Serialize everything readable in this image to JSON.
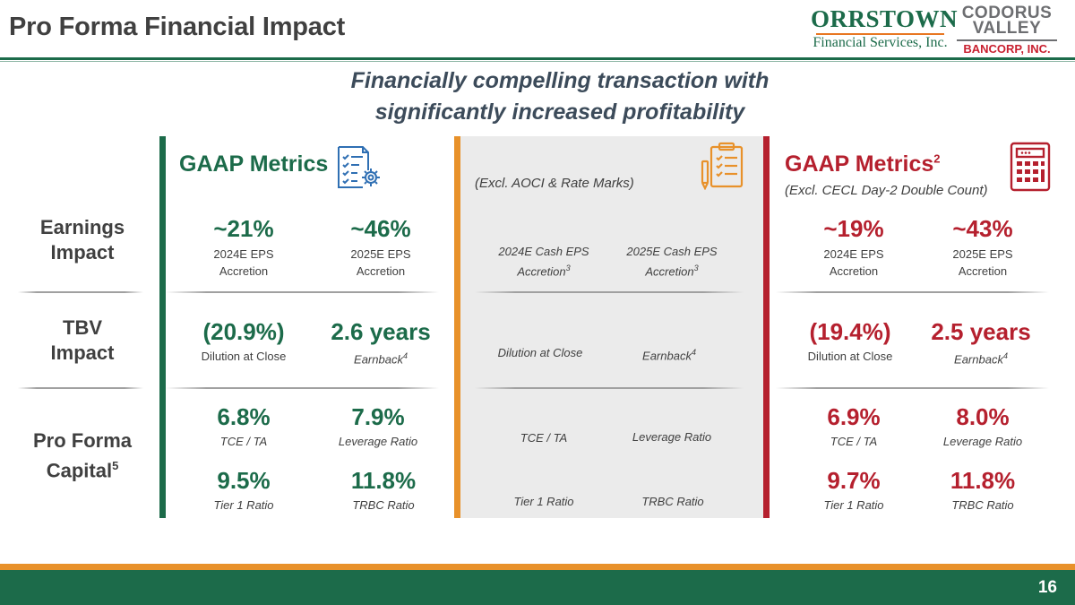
{
  "header": {
    "title": "Pro Forma Financial Impact",
    "logo_left": {
      "name": "ORRSTOWN",
      "subtitle": "Financial Services, Inc."
    },
    "logo_right": {
      "line1": "CODORUS",
      "line2": "VALLEY",
      "line3": "BANCORP, INC."
    }
  },
  "headline": {
    "line1": "Financially compelling transaction with",
    "line2": "significantly increased profitability"
  },
  "rows": {
    "earnings": {
      "line1": "Earnings",
      "line2": "Impact"
    },
    "tbv": {
      "line1": "TBV",
      "line2": "Impact"
    },
    "capital": {
      "line1": "Pro Forma",
      "line2": "Capital",
      "sup": "5"
    }
  },
  "gaap": {
    "title": "GAAP Metrics",
    "eps_2024": {
      "value": "~21%",
      "label1": "2024E EPS",
      "label2": "Accretion"
    },
    "eps_2025": {
      "value": "~46%",
      "label1": "2025E EPS",
      "label2": "Accretion"
    },
    "dilution": {
      "value": "(20.9%)",
      "label": "Dilution at Close"
    },
    "earnback": {
      "value": "2.6 years",
      "label": "Earnback",
      "sup": "4"
    },
    "tce": {
      "value": "6.8%",
      "label": "TCE / TA"
    },
    "leverage": {
      "value": "7.9%",
      "label": "Leverage Ratio"
    },
    "tier1": {
      "value": "9.5%",
      "label": "Tier 1 Ratio"
    },
    "trbc": {
      "value": "11.8%",
      "label": "TRBC Ratio"
    }
  },
  "middle": {
    "subtitle": "(Excl. AOCI & Rate Marks)",
    "eps_2024": {
      "label1": "2024E Cash EPS",
      "label2": "Accretion",
      "sup": "3"
    },
    "eps_2025": {
      "label1": "2025E Cash EPS",
      "label2": "Accretion",
      "sup": "3"
    },
    "dilution": {
      "label": "Dilution at Close"
    },
    "earnback": {
      "label": "Earnback",
      "sup": "4"
    },
    "tce": {
      "label": "TCE / TA"
    },
    "leverage": {
      "label": "Leverage Ratio"
    },
    "tier1": {
      "label": "Tier 1 Ratio"
    },
    "trbc": {
      "label": "TRBC Ratio"
    }
  },
  "gaap2": {
    "title": "GAAP Metrics",
    "title_sup": "2",
    "subtitle": "(Excl. CECL Day-2 Double Count)",
    "eps_2024": {
      "value": "~19%",
      "label1": "2024E EPS",
      "label2": "Accretion"
    },
    "eps_2025": {
      "value": "~43%",
      "label1": "2025E EPS",
      "label2": "Accretion"
    },
    "dilution": {
      "value": "(19.4%)",
      "label": "Dilution at Close"
    },
    "earnback": {
      "value": "2.5 years",
      "label": "Earnback",
      "sup": "4"
    },
    "tce": {
      "value": "6.9%",
      "label": "TCE / TA"
    },
    "leverage": {
      "value": "8.0%",
      "label": "Leverage Ratio"
    },
    "tier1": {
      "value": "9.7%",
      "label": "Tier 1 Ratio"
    },
    "trbc": {
      "value": "11.8%",
      "label": "TRBC Ratio"
    }
  },
  "footer": {
    "page_number": "16"
  },
  "colors": {
    "green": "#1c6b4a",
    "orange": "#e8912a",
    "red": "#b5202e",
    "blue_icon": "#2f6fb3"
  },
  "icons": {
    "gaap": "checklist-gear-icon",
    "middle": "clipboard-checklist-icon",
    "gaap2": "calculator-icon"
  }
}
